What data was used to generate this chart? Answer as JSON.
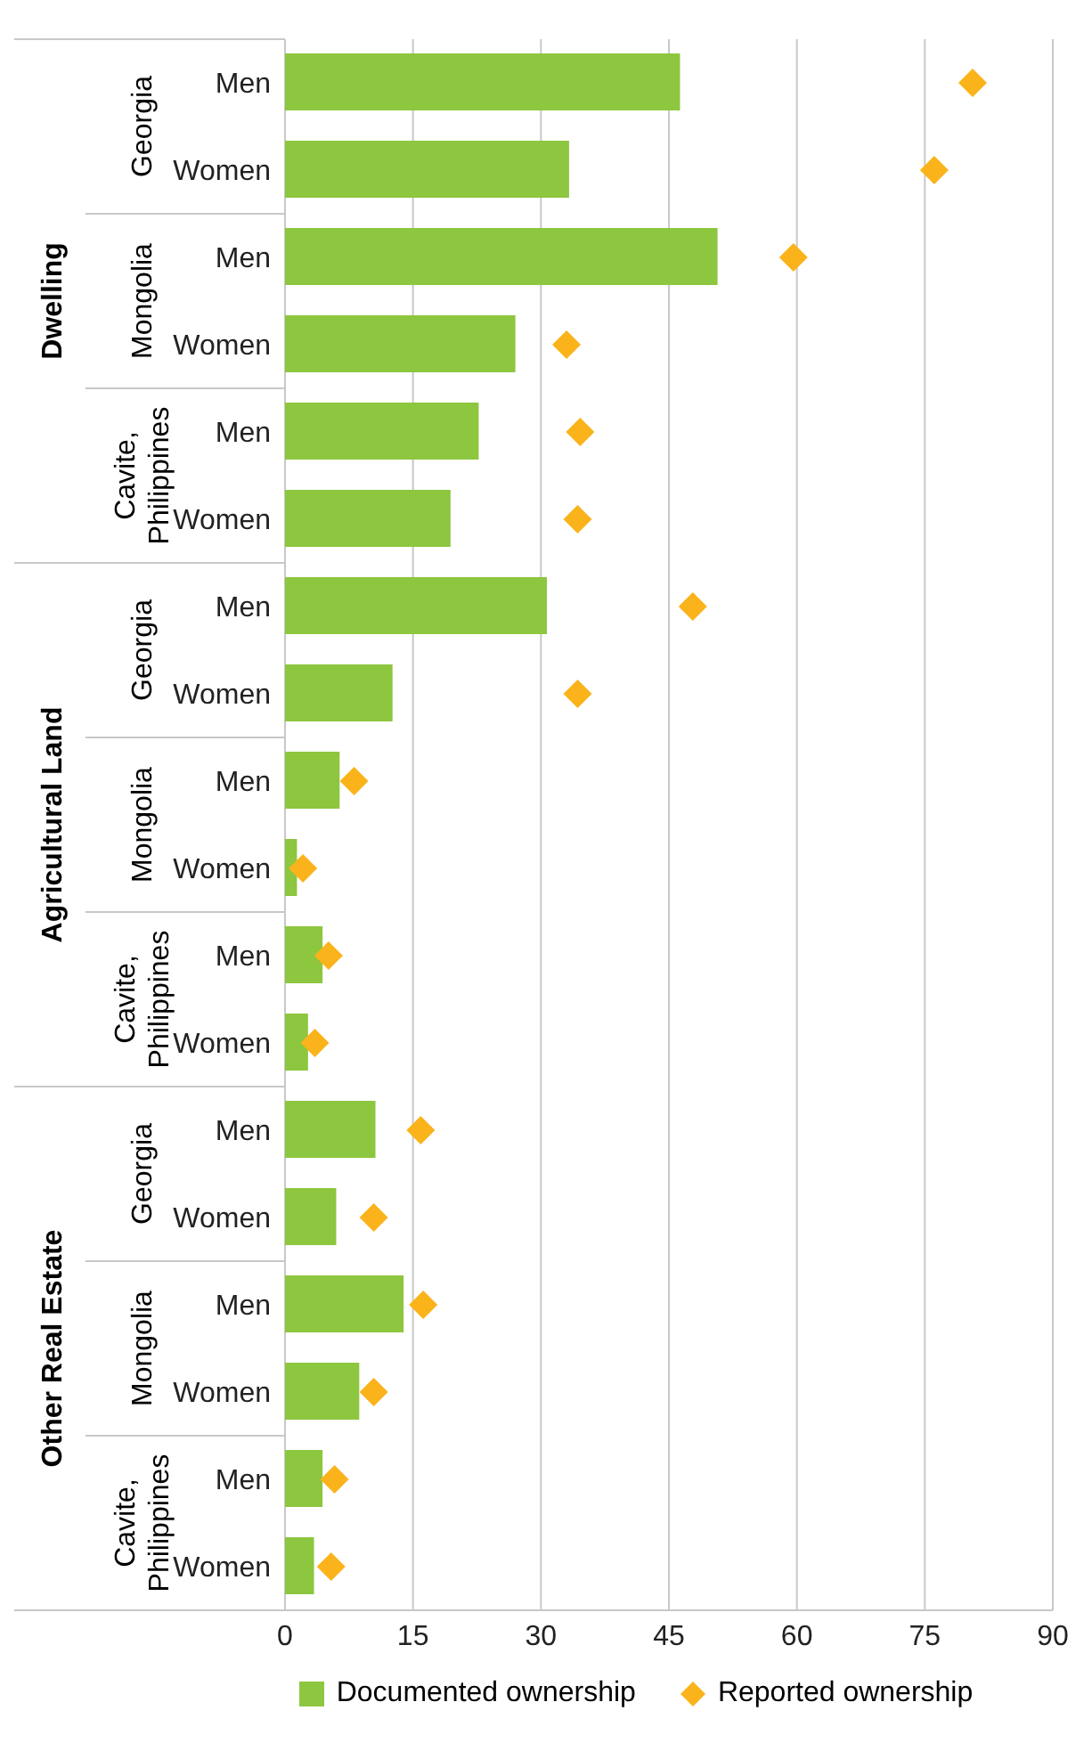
{
  "chart_data": {
    "type": "bar",
    "orientation": "horizontal",
    "categories": [
      "Men",
      "Women",
      "Men",
      "Women",
      "Men",
      "Women",
      "Men",
      "Women",
      "Men",
      "Women",
      "Men",
      "Women",
      "Men",
      "Women",
      "Men",
      "Women",
      "Men",
      "Women"
    ],
    "series": [
      {
        "name": "Documented ownership",
        "type": "bar",
        "color": "#8dc63f",
        "values": [
          46.3,
          33.3,
          50.7,
          27.0,
          22.7,
          19.4,
          30.7,
          12.6,
          6.4,
          1.4,
          4.4,
          2.7,
          10.6,
          6.0,
          13.9,
          8.7,
          4.4,
          3.4
        ]
      },
      {
        "name": "Reported ownership",
        "type": "scatter",
        "color": "#fbb31b",
        "values": [
          80.6,
          76.1,
          59.6,
          33.0,
          34.6,
          34.3,
          47.8,
          34.3,
          8.1,
          2.1,
          5.1,
          3.5,
          15.9,
          10.4,
          16.2,
          10.4,
          5.8,
          5.4
        ]
      }
    ],
    "annotations": [
      "Dwelling",
      "Georgia",
      "Mongolia",
      "Cavite, Philippines",
      "Agricultural Land",
      "Georgia",
      "Mongolia",
      "Cavite, Philippines",
      "Other Real Estate",
      "Georgia",
      "Mongolia",
      "Cavite, Philippines"
    ],
    "xlim": [
      0,
      90
    ],
    "xticks": [
      0,
      15,
      30,
      45,
      60,
      75,
      90
    ],
    "grid": "x",
    "legend": "bottom",
    "marker": "diamond"
  }
}
